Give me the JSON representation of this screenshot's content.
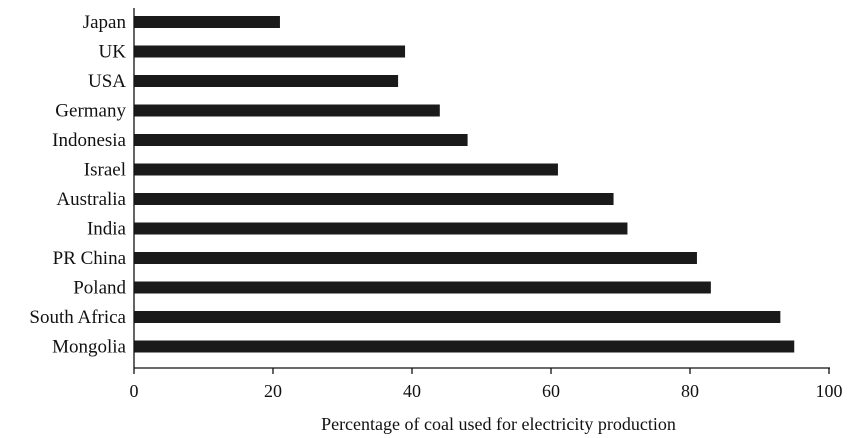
{
  "chart_data": {
    "type": "bar",
    "orientation": "horizontal",
    "categories": [
      "Japan",
      "UK",
      "USA",
      "Germany",
      "Indonesia",
      "Israel",
      "Australia",
      "India",
      "PR China",
      "Poland",
      "South Africa",
      "Mongolia"
    ],
    "values": [
      21,
      39,
      38,
      44,
      48,
      61,
      69,
      71,
      81,
      83,
      93,
      95
    ],
    "xlabel": "Percentage of coal used for electricity production",
    "ylabel": "",
    "xlim": [
      0,
      100
    ],
    "xticks": [
      "0",
      "20",
      "40",
      "60",
      "80",
      "100"
    ],
    "bar_color": "#1a1a1a",
    "grid": false,
    "legend": "none"
  }
}
